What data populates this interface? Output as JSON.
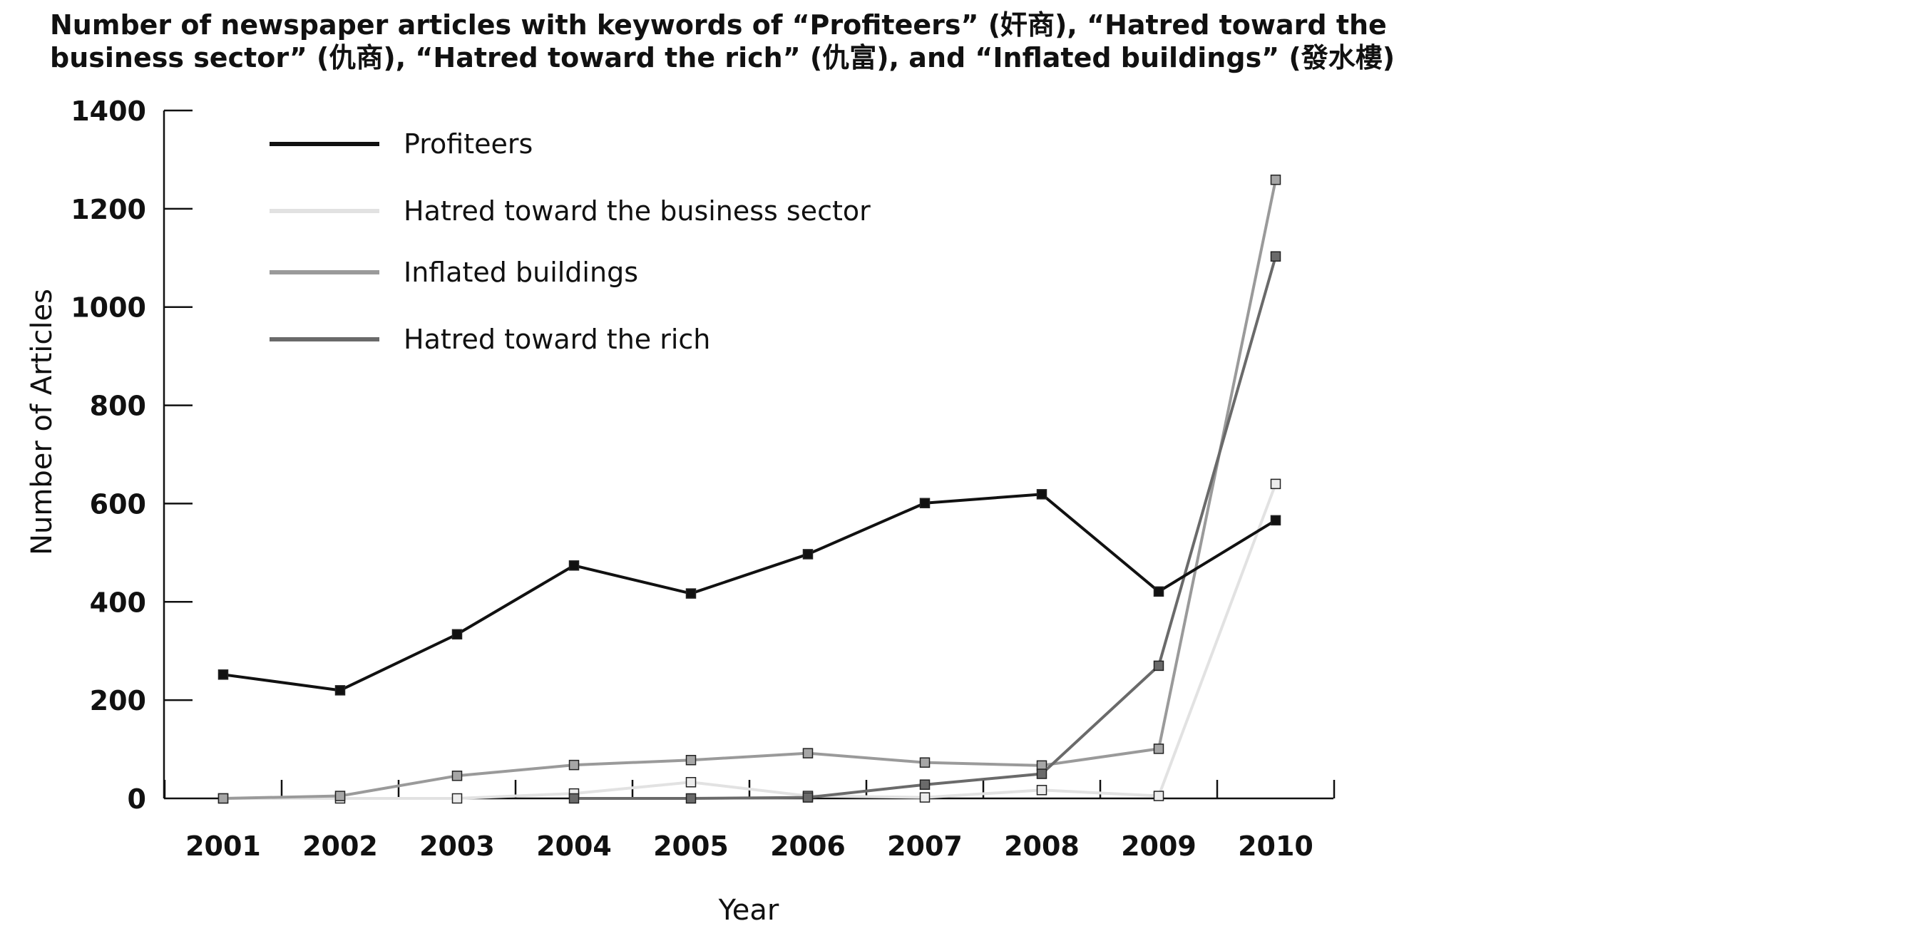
{
  "chart_data": {
    "type": "line",
    "title_lines": [
      "Number of newspaper articles with keywords of “Profiteers” (奸商), “Hatred toward the",
      "business sector” (仇商), “Hatred toward the rich” (仇富), and “Inflated buildings” (發水樓)"
    ],
    "xlabel": "Year",
    "ylabel": "Number of Articles",
    "ylim": [
      0,
      1400
    ],
    "y_ticks": [
      "0",
      "200",
      "400",
      "600",
      "800",
      "1000",
      "1200",
      "1400"
    ],
    "categories": [
      "2001",
      "2002",
      "2003",
      "2004",
      "2005",
      "2006",
      "2007",
      "2008",
      "2009",
      "2010"
    ],
    "legend_position": "top-left",
    "grid": false,
    "series": [
      {
        "name": "Profiteers",
        "color": "#111111",
        "marker_fill": "#111111",
        "values": [
          252,
          220,
          334,
          474,
          417,
          497,
          601,
          619,
          421,
          566
        ]
      },
      {
        "name": "Hatred toward the business sector",
        "color": "#e2e2e2",
        "marker_fill": "#ececec",
        "values": [
          0,
          0,
          0,
          10,
          33,
          5,
          2,
          17,
          5,
          640
        ]
      },
      {
        "name": "Inflated buildings",
        "color": "#9a9a9a",
        "marker_fill": "#a6a6a6",
        "values": [
          0,
          5,
          46,
          68,
          78,
          92,
          73,
          67,
          101,
          1259
        ]
      },
      {
        "name": "Hatred toward the rich",
        "color": "#6a6a6a",
        "marker_fill": "#6a6a6a",
        "values": [
          null,
          null,
          null,
          0,
          0,
          2,
          28,
          50,
          270,
          1103
        ]
      }
    ]
  }
}
